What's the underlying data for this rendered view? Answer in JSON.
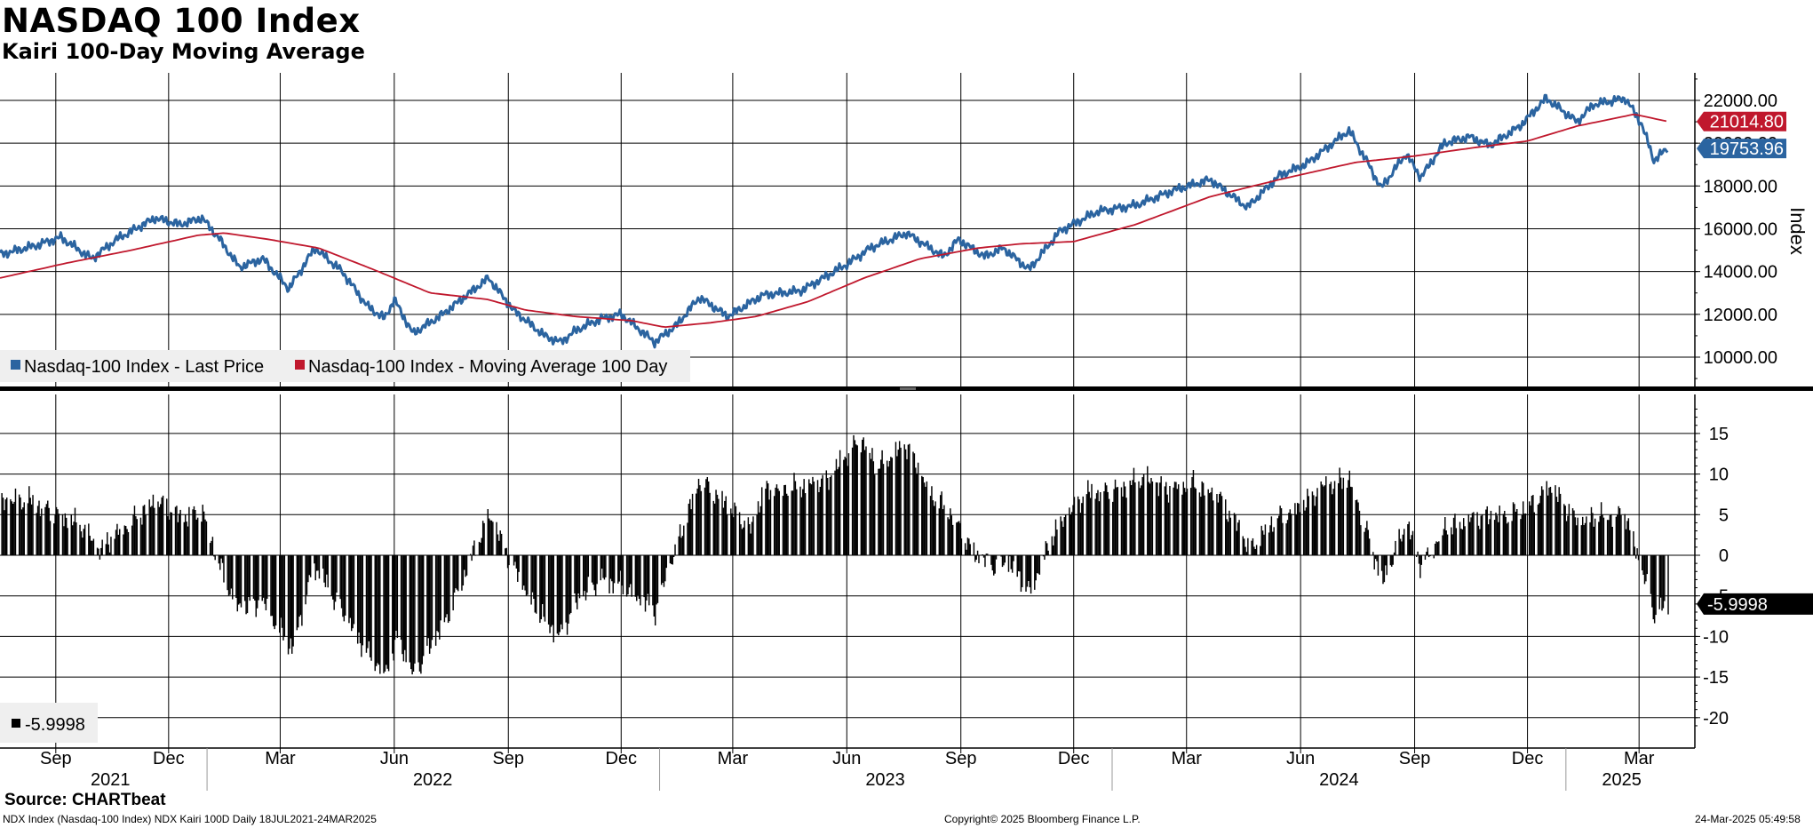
{
  "title": "NASDAQ 100 Index",
  "subtitle": "Kairi 100-Day Moving Average",
  "source": "Source: CHARTbeat",
  "footer": {
    "left": "NDX Index (Nasdaq-100 Index) NDX Kairi 100D  Daily 18JUL2021-24MAR2025",
    "center": "Copyright© 2025 Bloomberg Finance L.P.",
    "right": "24-Mar-2025 05:49:58"
  },
  "colors": {
    "price": "#2b64a0",
    "ma": "#c0182d",
    "kairi": "#000000",
    "background": "#ffffff",
    "grid": "#000000"
  },
  "chart_data": [
    {
      "type": "line",
      "ylabel": "Index",
      "ylim": [
        8500,
        23500
      ],
      "yticks": [
        "22000.00",
        "20000.00",
        "18000.00",
        "16000.00",
        "14000.00",
        "12000.00",
        "10000.00"
      ],
      "grid": true,
      "legend_position": "bottom-left",
      "last_value_labels": [
        {
          "series": "Nasdaq-100 Index - Moving Average 100 Day",
          "value": "21014.80"
        },
        {
          "series": "Nasdaq-100 Index - Last Price",
          "value": "19753.96"
        }
      ],
      "series": [
        {
          "name": "Nasdaq-100 Index - Last Price",
          "color": "#2b64a0",
          "points": [
            [
              "2021-07-18",
              14800
            ],
            [
              "2021-08-15",
              15200
            ],
            [
              "2021-09-05",
              15600
            ],
            [
              "2021-09-30",
              14600
            ],
            [
              "2021-10-20",
              15500
            ],
            [
              "2021-11-20",
              16500
            ],
            [
              "2021-12-10",
              16200
            ],
            [
              "2021-12-28",
              16500
            ],
            [
              "2022-01-10",
              15600
            ],
            [
              "2022-01-27",
              14200
            ],
            [
              "2022-02-15",
              14600
            ],
            [
              "2022-03-08",
              13200
            ],
            [
              "2022-03-29",
              15100
            ],
            [
              "2022-04-20",
              14000
            ],
            [
              "2022-05-10",
              12400
            ],
            [
              "2022-05-24",
              11800
            ],
            [
              "2022-06-01",
              12700
            ],
            [
              "2022-06-16",
              11100
            ],
            [
              "2022-07-10",
              12000
            ],
            [
              "2022-08-16",
              13700
            ],
            [
              "2022-09-05",
              12200
            ],
            [
              "2022-09-30",
              11000
            ],
            [
              "2022-10-13",
              10700
            ],
            [
              "2022-10-27",
              11300
            ],
            [
              "2022-11-15",
              11800
            ],
            [
              "2022-12-01",
              12000
            ],
            [
              "2022-12-28",
              10700
            ],
            [
              "2023-01-15",
              11500
            ],
            [
              "2023-02-02",
              12800
            ],
            [
              "2023-02-25",
              11900
            ],
            [
              "2023-03-25",
              12900
            ],
            [
              "2023-04-25",
              13100
            ],
            [
              "2023-05-31",
              14300
            ],
            [
              "2023-06-20",
              15100
            ],
            [
              "2023-07-19",
              15800
            ],
            [
              "2023-08-18",
              14700
            ],
            [
              "2023-08-30",
              15500
            ],
            [
              "2023-09-20",
              14700
            ],
            [
              "2023-10-05",
              15100
            ],
            [
              "2023-10-26",
              14100
            ],
            [
              "2023-11-20",
              15900
            ],
            [
              "2023-12-20",
              16800
            ],
            [
              "2024-01-20",
              17100
            ],
            [
              "2024-02-20",
              17800
            ],
            [
              "2024-03-20",
              18300
            ],
            [
              "2024-04-19",
              17000
            ],
            [
              "2024-05-15",
              18500
            ],
            [
              "2024-06-05",
              19000
            ],
            [
              "2024-07-10",
              20600
            ],
            [
              "2024-07-25",
              19100
            ],
            [
              "2024-08-05",
              17900
            ],
            [
              "2024-08-25",
              19500
            ],
            [
              "2024-09-06",
              18400
            ],
            [
              "2024-09-25",
              20000
            ],
            [
              "2024-10-15",
              20300
            ],
            [
              "2024-11-01",
              19900
            ],
            [
              "2024-11-25",
              20800
            ],
            [
              "2024-12-16",
              22100
            ],
            [
              "2025-01-10",
              21000
            ],
            [
              "2025-01-23",
              21800
            ],
            [
              "2025-02-18",
              22100
            ],
            [
              "2025-03-03",
              20900
            ],
            [
              "2025-03-13",
              19200
            ],
            [
              "2025-03-24",
              19754
            ]
          ]
        },
        {
          "name": "Nasdaq-100 Index - Moving Average 100 Day",
          "color": "#c0182d",
          "points": [
            [
              "2021-07-18",
              13700
            ],
            [
              "2021-09-10",
              14400
            ],
            [
              "2021-11-01",
              15000
            ],
            [
              "2021-12-25",
              15700
            ],
            [
              "2022-01-15",
              15800
            ],
            [
              "2022-02-20",
              15500
            ],
            [
              "2022-04-01",
              15100
            ],
            [
              "2022-05-15",
              14100
            ],
            [
              "2022-06-30",
              13000
            ],
            [
              "2022-08-15",
              12700
            ],
            [
              "2022-09-15",
              12200
            ],
            [
              "2022-10-25",
              11900
            ],
            [
              "2022-12-10",
              11700
            ],
            [
              "2023-01-05",
              11400
            ],
            [
              "2023-02-10",
              11600
            ],
            [
              "2023-03-20",
              11900
            ],
            [
              "2023-05-01",
              12600
            ],
            [
              "2023-06-15",
              13700
            ],
            [
              "2023-07-30",
              14600
            ],
            [
              "2023-09-15",
              15100
            ],
            [
              "2023-10-20",
              15300
            ],
            [
              "2023-12-01",
              15400
            ],
            [
              "2024-01-20",
              16200
            ],
            [
              "2024-03-20",
              17500
            ],
            [
              "2024-05-15",
              18300
            ],
            [
              "2024-07-15",
              19100
            ],
            [
              "2024-09-01",
              19400
            ],
            [
              "2024-10-20",
              19800
            ],
            [
              "2024-12-01",
              20100
            ],
            [
              "2025-01-10",
              20800
            ],
            [
              "2025-02-25",
              21350
            ],
            [
              "2025-03-24",
              21015
            ]
          ]
        }
      ]
    },
    {
      "type": "bar",
      "ylim": [
        -22,
        19
      ],
      "yticks": [
        "15",
        "10",
        "5",
        "0",
        "-5",
        "-10",
        "-15",
        "-20"
      ],
      "grid": true,
      "legend_position": "bottom-left",
      "legend": "-5.9998",
      "last_value": "-5.9998",
      "series": [
        {
          "color": "#000000",
          "points": [
            [
              "2021-07-18",
              6.5
            ],
            [
              "2021-08-10",
              6.8
            ],
            [
              "2021-09-01",
              5.3
            ],
            [
              "2021-09-22",
              3.5
            ],
            [
              "2021-10-05",
              0.5
            ],
            [
              "2021-10-25",
              3.5
            ],
            [
              "2021-11-20",
              6.8
            ],
            [
              "2021-12-10",
              4.5
            ],
            [
              "2021-12-28",
              5.5
            ],
            [
              "2022-01-10",
              -1.0
            ],
            [
              "2022-01-25",
              -6.5
            ],
            [
              "2022-02-15",
              -6.0
            ],
            [
              "2022-03-10",
              -11.5
            ],
            [
              "2022-03-28",
              -1.2
            ],
            [
              "2022-04-15",
              -6.0
            ],
            [
              "2022-05-10",
              -12.0
            ],
            [
              "2022-05-25",
              -14.5
            ],
            [
              "2022-06-03",
              -10.0
            ],
            [
              "2022-06-16",
              -15.0
            ],
            [
              "2022-07-12",
              -8.0
            ],
            [
              "2022-08-05",
              1.0
            ],
            [
              "2022-08-16",
              5.0
            ],
            [
              "2022-09-06",
              -2.0
            ],
            [
              "2022-09-25",
              -7.0
            ],
            [
              "2022-10-12",
              -10.0
            ],
            [
              "2022-10-27",
              -5.5
            ],
            [
              "2022-11-15",
              -3.0
            ],
            [
              "2022-12-01",
              -3.5
            ],
            [
              "2022-12-28",
              -7.0
            ],
            [
              "2023-01-15",
              1.5
            ],
            [
              "2023-02-02",
              9.5
            ],
            [
              "2023-02-22",
              6.5
            ],
            [
              "2023-03-15",
              3.0
            ],
            [
              "2023-03-25",
              8.0
            ],
            [
              "2023-04-20",
              8.5
            ],
            [
              "2023-05-15",
              9.0
            ],
            [
              "2023-06-01",
              12.5
            ],
            [
              "2023-06-12",
              14.5
            ],
            [
              "2023-06-25",
              11.0
            ],
            [
              "2023-07-19",
              13.5
            ],
            [
              "2023-08-05",
              8.0
            ],
            [
              "2023-08-25",
              5.0
            ],
            [
              "2023-09-10",
              0.5
            ],
            [
              "2023-09-25",
              -1.5
            ],
            [
              "2023-10-10",
              -1.0
            ],
            [
              "2023-10-26",
              -4.5
            ],
            [
              "2023-11-15",
              3.0
            ],
            [
              "2023-12-10",
              7.5
            ],
            [
              "2024-01-10",
              8.5
            ],
            [
              "2024-01-25",
              9.5
            ],
            [
              "2024-02-15",
              8.0
            ],
            [
              "2024-03-05",
              9.0
            ],
            [
              "2024-03-25",
              7.5
            ],
            [
              "2024-04-15",
              2.5
            ],
            [
              "2024-04-20",
              0.5
            ],
            [
              "2024-05-10",
              4.5
            ],
            [
              "2024-06-01",
              6.0
            ],
            [
              "2024-06-20",
              8.5
            ],
            [
              "2024-07-10",
              9.5
            ],
            [
              "2024-07-25",
              2.5
            ],
            [
              "2024-08-06",
              -3.5
            ],
            [
              "2024-08-25",
              4.0
            ],
            [
              "2024-09-06",
              -1.5
            ],
            [
              "2024-09-25",
              3.5
            ],
            [
              "2024-10-20",
              4.5
            ],
            [
              "2024-11-15",
              5.0
            ],
            [
              "2024-12-05",
              6.5
            ],
            [
              "2024-12-18",
              8.5
            ],
            [
              "2025-01-10",
              4.0
            ],
            [
              "2025-01-25",
              5.0
            ],
            [
              "2025-02-18",
              5.0
            ],
            [
              "2025-02-25",
              1.0
            ],
            [
              "2025-03-06",
              -3.5
            ],
            [
              "2025-03-13",
              -7.5
            ],
            [
              "2025-03-24",
              -6.0
            ]
          ]
        }
      ]
    }
  ],
  "legend_items": [
    {
      "label": "Nasdaq-100 Index - Last Price",
      "color": "#2b64a0"
    },
    {
      "label": "Nasdaq-100 Index - Moving Average 100 Day",
      "color": "#c0182d"
    }
  ],
  "x_axis": {
    "months": [
      [
        "Sep",
        "2021-09-01"
      ],
      [
        "Dec",
        "2021-12-01"
      ],
      [
        "Mar",
        "2022-03-01"
      ],
      [
        "Jun",
        "2022-06-01"
      ],
      [
        "Sep",
        "2022-09-01"
      ],
      [
        "Dec",
        "2022-12-01"
      ],
      [
        "Mar",
        "2023-03-01"
      ],
      [
        "Jun",
        "2023-06-01"
      ],
      [
        "Sep",
        "2023-09-01"
      ],
      [
        "Dec",
        "2023-12-01"
      ],
      [
        "Mar",
        "2024-03-01"
      ],
      [
        "Jun",
        "2024-06-01"
      ],
      [
        "Sep",
        "2024-09-01"
      ],
      [
        "Dec",
        "2024-12-01"
      ],
      [
        "Mar",
        "2025-03-01"
      ]
    ],
    "years": [
      [
        "2021",
        "2021-10-15"
      ],
      [
        "2022",
        "2022-07-02"
      ],
      [
        "2023",
        "2023-07-02"
      ],
      [
        "2024",
        "2024-07-02"
      ],
      [
        "2025",
        "2025-02-15"
      ]
    ],
    "year_dividers": [
      "2022-01-01",
      "2023-01-01",
      "2024-01-01",
      "2025-01-01"
    ],
    "range": [
      "2021-07-18",
      "2025-04-15"
    ]
  }
}
